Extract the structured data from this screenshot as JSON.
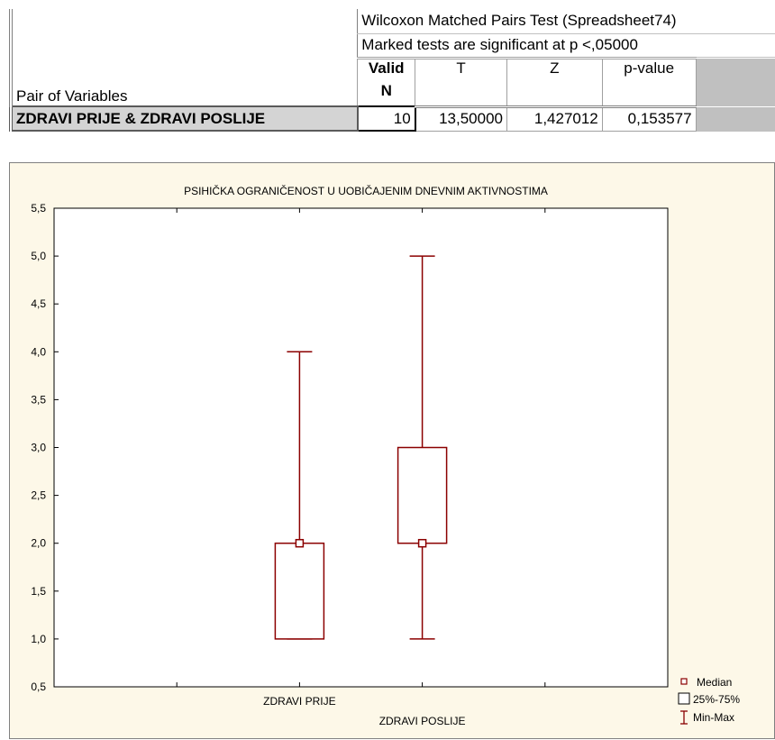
{
  "table": {
    "title_line1": "Wilcoxon Matched Pairs Test (Spreadsheet74)",
    "title_line2": "Marked tests are significant at p <,05000",
    "row_header": "Pair of Variables",
    "columns": {
      "valid_n_line1": "Valid",
      "valid_n_line2": "N",
      "t": "T",
      "z": "Z",
      "p": "p-value"
    },
    "rows": [
      {
        "pair": "ZDRAVI PRIJE & ZDRAVI POSLIJE",
        "valid_n": "10",
        "t": "13,50000",
        "z": "1,427012",
        "p": "0,153577"
      }
    ]
  },
  "chart_data": {
    "type": "box",
    "title": "PSIHIČKA OGRANIČENOST U UOBIČAJENIM DNEVNIM  AKTIVNOSTIMA",
    "ylim": [
      0.5,
      5.5
    ],
    "yticks": [
      "0,5",
      "1,0",
      "1,5",
      "2,0",
      "2,5",
      "3,0",
      "3,5",
      "4,0",
      "4,5",
      "5,0",
      "5,5"
    ],
    "grid": false,
    "legend_position": "bottom-right",
    "legend": [
      "Median",
      "25%-75%",
      "Min-Max"
    ],
    "color": "#8b0000",
    "boxes": [
      {
        "category": "ZDRAVI PRIJE",
        "min": 1.0,
        "q1": 1.0,
        "median": 2.0,
        "q3": 2.0,
        "max": 4.0
      },
      {
        "category": "ZDRAVI POSLIJE",
        "min": 1.0,
        "q1": 2.0,
        "median": 2.0,
        "q3": 3.0,
        "max": 5.0
      }
    ]
  }
}
